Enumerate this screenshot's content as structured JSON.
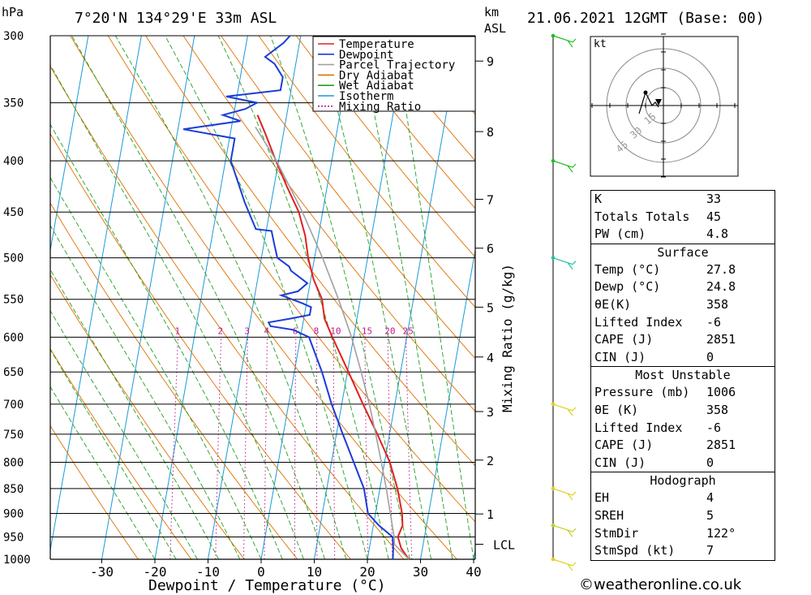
{
  "header": {
    "location": "7°20'N  134°29'E  33m  ASL",
    "datetime": "21.06.2021  12GMT  (Base: 00)",
    "pressure_unit": "hPa",
    "height_unit_1": "km",
    "height_unit_2": "ASL"
  },
  "legend": {
    "items": [
      {
        "label": "Temperature",
        "color": "#e02020",
        "dotted": false
      },
      {
        "label": "Dewpoint",
        "color": "#1a3cd8",
        "dotted": false
      },
      {
        "label": "Parcel Trajectory",
        "color": "#a0a0a0",
        "dotted": false
      },
      {
        "label": "Dry Adiabat",
        "color": "#e07000",
        "dotted": false
      },
      {
        "label": "Wet Adiabat",
        "color": "#20a020",
        "dotted": false
      },
      {
        "label": "Isotherm",
        "color": "#1a9ad8",
        "dotted": false
      },
      {
        "label": "Mixing Ratio",
        "color": "#c01890",
        "dotted": true
      }
    ]
  },
  "chart_data": {
    "type": "line",
    "xlabel": "Dewpoint / Temperature (°C)",
    "ylabel": "hPa",
    "xlim": [
      -40,
      40
    ],
    "pressure_levels": [
      300,
      350,
      400,
      450,
      500,
      550,
      600,
      650,
      700,
      750,
      800,
      850,
      900,
      950,
      1000
    ],
    "x_ticks": [
      -30,
      -20,
      -10,
      0,
      10,
      20,
      30,
      40
    ],
    "km_ticks": [
      {
        "label": "9",
        "p": 318
      },
      {
        "label": "8",
        "p": 374
      },
      {
        "label": "7",
        "p": 437
      },
      {
        "label": "6",
        "p": 489
      },
      {
        "label": "5",
        "p": 560
      },
      {
        "label": "4",
        "p": 628
      },
      {
        "label": "3",
        "p": 712
      },
      {
        "label": "2",
        "p": 796
      },
      {
        "label": "1",
        "p": 901
      },
      {
        "label": "LCL",
        "p": 966
      }
    ],
    "mixing_ratio_label": "Mixing Ratio (g/kg)",
    "mixing_ratio_values": [
      1,
      2,
      3,
      4,
      6,
      8,
      10,
      15,
      20,
      25
    ],
    "skew_per_log": 14.5,
    "series": [
      {
        "name": "Temperature",
        "color": "#e02020",
        "points": [
          [
            1000,
            27.8
          ],
          [
            975,
            26
          ],
          [
            950,
            25
          ],
          [
            925,
            25.5
          ],
          [
            900,
            25
          ],
          [
            850,
            23.3
          ],
          [
            800,
            21
          ],
          [
            750,
            17.7
          ],
          [
            700,
            14
          ],
          [
            650,
            10.2
          ],
          [
            600,
            6
          ],
          [
            575,
            3.9
          ],
          [
            550,
            2.8
          ],
          [
            525,
            0.5
          ],
          [
            500,
            -1.2
          ],
          [
            475,
            -2.5
          ],
          [
            450,
            -4.5
          ],
          [
            425,
            -7.5
          ],
          [
            400,
            -10.5
          ],
          [
            375,
            -13.5
          ],
          [
            360,
            -15.5
          ]
        ]
      },
      {
        "name": "Dewpoint",
        "color": "#1a3cd8",
        "points": [
          [
            1000,
            24.8
          ],
          [
            975,
            24.5
          ],
          [
            950,
            24
          ],
          [
            925,
            21
          ],
          [
            900,
            18.6
          ],
          [
            850,
            17
          ],
          [
            800,
            14.2
          ],
          [
            750,
            11.2
          ],
          [
            700,
            8.1
          ],
          [
            650,
            5.2
          ],
          [
            600,
            1.6
          ],
          [
            595,
            0
          ],
          [
            590,
            -1.6
          ],
          [
            585,
            -6
          ],
          [
            580,
            -6.5
          ],
          [
            575,
            -2.5
          ],
          [
            570,
            1
          ],
          [
            560,
            1
          ],
          [
            555,
            -0.8
          ],
          [
            545,
            -5
          ],
          [
            540,
            -2
          ],
          [
            530,
            -0.5
          ],
          [
            515,
            -4
          ],
          [
            510,
            -4.5
          ],
          [
            500,
            -7
          ],
          [
            485,
            -8
          ],
          [
            470,
            -9
          ],
          [
            468,
            -12
          ],
          [
            440,
            -15
          ],
          [
            400,
            -19
          ],
          [
            380,
            -19
          ],
          [
            372,
            -29
          ],
          [
            365,
            -18.5
          ],
          [
            360,
            -22
          ],
          [
            355,
            -18
          ],
          [
            350,
            -16
          ],
          [
            345,
            -22
          ],
          [
            340,
            -12
          ],
          [
            330,
            -12
          ],
          [
            320,
            -14
          ],
          [
            315,
            -16
          ],
          [
            305,
            -13
          ],
          [
            300,
            -12
          ]
        ]
      },
      {
        "name": "Parcel Trajectory",
        "color": "#a0a0a0",
        "points": [
          [
            1000,
            27.8
          ],
          [
            966,
            24.6
          ],
          [
            950,
            24.3
          ],
          [
            900,
            22.8
          ],
          [
            850,
            21.2
          ],
          [
            800,
            19.4
          ],
          [
            750,
            17.4
          ],
          [
            700,
            15.2
          ],
          [
            650,
            12.6
          ],
          [
            600,
            9.6
          ],
          [
            550,
            5.9
          ],
          [
            500,
            1.5
          ],
          [
            450,
            -3.8
          ],
          [
            400,
            -10.4
          ],
          [
            370,
            -15.5
          ]
        ]
      }
    ]
  },
  "hodograph": {
    "unit": "kt",
    "ring_labels": [
      "15",
      "30",
      "45"
    ]
  },
  "wind_barbs": [
    {
      "p": 300,
      "color": "#20c020"
    },
    {
      "p": 400,
      "color": "#20c020"
    },
    {
      "p": 500,
      "color": "#20c0a0"
    },
    {
      "p": 700,
      "color": "#e0d020"
    },
    {
      "p": 850,
      "color": "#e0d020"
    },
    {
      "p": 925,
      "color": "#c0d020"
    },
    {
      "p": 1000,
      "color": "#e0d020"
    }
  ],
  "indices": {
    "top": [
      {
        "label": "K",
        "value": "33"
      },
      {
        "label": "Totals Totals",
        "value": "45"
      },
      {
        "label": "PW (cm)",
        "value": "4.8"
      }
    ],
    "surface_title": "Surface",
    "surface": [
      {
        "label": "Temp (°C)",
        "value": "27.8"
      },
      {
        "label": "Dewp (°C)",
        "value": "24.8"
      },
      {
        "label": "θE(K)",
        "value": "358"
      },
      {
        "label": "Lifted Index",
        "value": "-6"
      },
      {
        "label": "CAPE (J)",
        "value": "2851"
      },
      {
        "label": "CIN (J)",
        "value": "0"
      }
    ],
    "mu_title": "Most Unstable",
    "mu": [
      {
        "label": "Pressure (mb)",
        "value": "1006"
      },
      {
        "label": "θE (K)",
        "value": "358"
      },
      {
        "label": "Lifted Index",
        "value": "-6"
      },
      {
        "label": "CAPE (J)",
        "value": "2851"
      },
      {
        "label": "CIN (J)",
        "value": "0"
      }
    ],
    "hodo_title": "Hodograph",
    "hodo": [
      {
        "label": "EH",
        "value": "4"
      },
      {
        "label": "SREH",
        "value": "5"
      },
      {
        "label": "StmDir",
        "value": "122°"
      },
      {
        "label": "StmSpd (kt)",
        "value": "7"
      }
    ]
  },
  "credit": "©weatheronline.co.uk"
}
